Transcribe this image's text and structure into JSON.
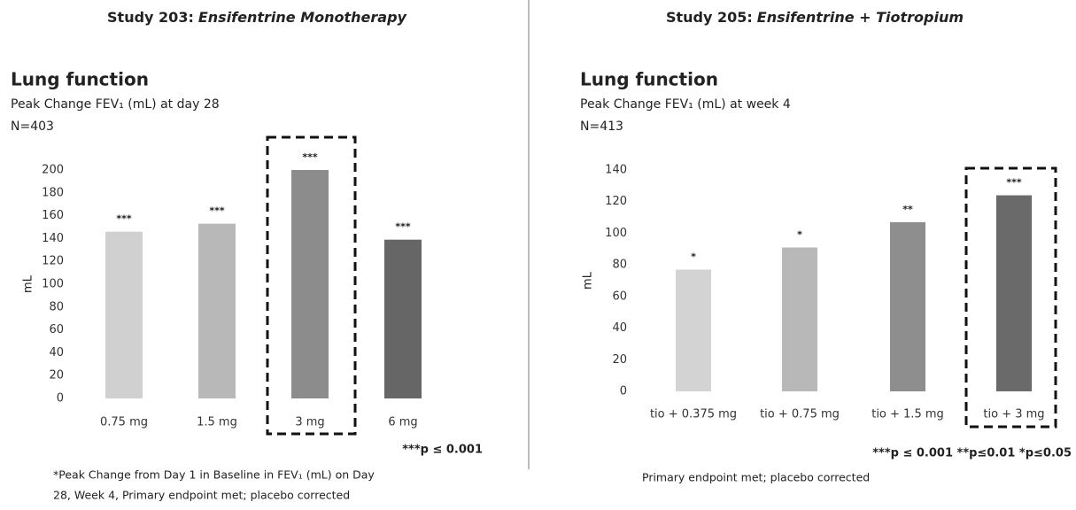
{
  "chart_data": [
    {
      "type": "bar",
      "title": {
        "text": "Study 203:",
        "emphasis": "Ensifentrine Monotherapy"
      },
      "section": "Lung function",
      "subtitle": "Peak Change FEV₁ (mL) at day 28",
      "n": "N=403",
      "ylabel": "mL",
      "categories": [
        "0.75 mg",
        "1.5 mg",
        "3 mg",
        "6 mg"
      ],
      "values": [
        146,
        153,
        200,
        139
      ],
      "colors": [
        "#d0d0d0",
        "#b8b8b8",
        "#8c8c8c",
        "#666666"
      ],
      "significance": [
        "***",
        "***",
        "***",
        "***"
      ],
      "highlight": 2,
      "ylim": [
        0,
        200
      ],
      "yticks": [
        0,
        20,
        40,
        60,
        80,
        100,
        120,
        140,
        160,
        180,
        200
      ],
      "grid": false,
      "pvalue_note": "***p ≤ 0.001",
      "footnote": [
        "*Peak Change from Day 1 in Baseline in FEV₁ (mL) on Day",
        "28, Week 4, Primary endpoint met; placebo corrected"
      ]
    },
    {
      "type": "bar",
      "title": {
        "text": "Study 205:",
        "emphasis": "Ensifentrine + Tiotropium"
      },
      "section": "Lung function",
      "subtitle": "Peak Change FEV₁ (mL) at week 4",
      "n": "N=413",
      "ylabel": "mL",
      "categories": [
        "tio + 0.375 mg",
        "tio + 0.75 mg",
        "tio + 1.5 mg",
        "tio + 3 mg"
      ],
      "values": [
        77,
        91,
        107,
        124
      ],
      "colors": [
        "#d3d3d3",
        "#b8b8b8",
        "#8e8e8e",
        "#6a6a6a"
      ],
      "significance": [
        "*",
        "*",
        "**",
        "***"
      ],
      "highlight": 3,
      "ylim": [
        0,
        140
      ],
      "yticks": [
        0,
        20,
        40,
        60,
        80,
        100,
        120,
        140
      ],
      "grid": false,
      "pvalue_note": "***p ≤ 0.001 **p≤0.01 *p≤0.05",
      "footnote": [
        "Primary endpoint met; placebo corrected"
      ]
    }
  ]
}
